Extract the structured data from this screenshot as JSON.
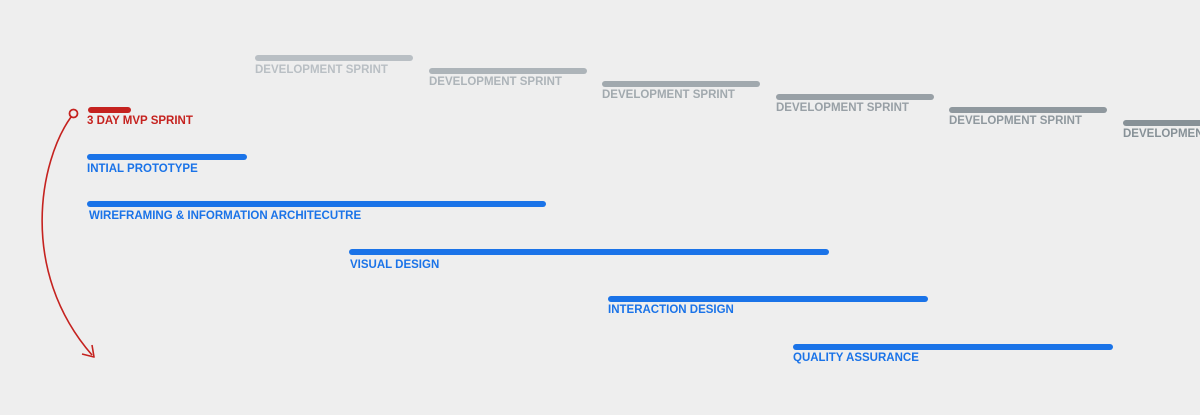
{
  "colors": {
    "background": "#eeeeee",
    "mvp": "#c5221f",
    "task": "#1a73e8",
    "sprint_light": "#b6bcc1",
    "sprint_dark": "#8b969d"
  },
  "mvp": {
    "label": "3 DAY MVP SPRINT"
  },
  "sprints": [
    {
      "label": "DEVELOPMENT SPRINT",
      "tone": "light"
    },
    {
      "label": "DEVELOPMENT SPRINT",
      "tone": "light"
    },
    {
      "label": "DEVELOPMENT SPRINT",
      "tone": "mid"
    },
    {
      "label": "DEVELOPMENT SPRINT",
      "tone": "mid"
    },
    {
      "label": "DEVELOPMENT SPRINT",
      "tone": "dark"
    },
    {
      "label": "DEVELOPMENT SPRINT",
      "tone": "dark"
    }
  ],
  "tasks": [
    {
      "label": "INTIAL PROTOTYPE"
    },
    {
      "label": "WIREFRAMING & INFORMATION ARCHITECUTRE"
    },
    {
      "label": "VISUAL DESIGN"
    },
    {
      "label": "INTERACTION DESIGN"
    },
    {
      "label": "QUALITY ASSURANCE"
    }
  ]
}
